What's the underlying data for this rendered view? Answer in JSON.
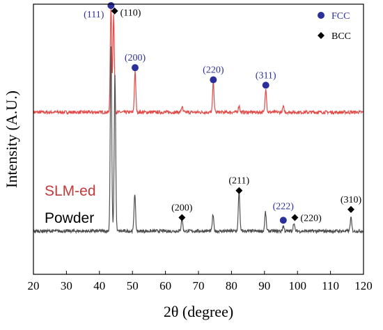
{
  "chart_data": {
    "type": "line",
    "xlabel": "2θ (degree)",
    "ylabel": "Intensity (A.U.)",
    "xlim": [
      20,
      120
    ],
    "x_ticks": [
      "20",
      "30",
      "40",
      "50",
      "60",
      "70",
      "80",
      "90",
      "100",
      "110",
      "120"
    ],
    "legend": {
      "placement": "top-right",
      "entries": [
        {
          "label": "FCC",
          "marker": "circle",
          "color": "#2b2f9a"
        },
        {
          "label": "BCC",
          "marker": "diamond",
          "color": "#000000"
        }
      ]
    },
    "series": [
      {
        "name": "SLM-ed",
        "color": "#e24b48",
        "label_color": "#c43a3a",
        "baseline": 0.6,
        "noise": 0.006,
        "peaks": [
          {
            "x": 43.5,
            "height": 0.39
          },
          {
            "x": 44.3,
            "height": 0.36
          },
          {
            "x": 50.8,
            "height": 0.15
          },
          {
            "x": 65.0,
            "height": 0.02
          },
          {
            "x": 74.5,
            "height": 0.11
          },
          {
            "x": 82.3,
            "height": 0.025
          },
          {
            "x": 90.4,
            "height": 0.09
          },
          {
            "x": 95.7,
            "height": 0.02
          }
        ]
      },
      {
        "name": "Powder",
        "color": "#505050",
        "label_color": "#000000",
        "baseline": 0.16,
        "noise": 0.006,
        "peaks": [
          {
            "x": 43.5,
            "height": 0.68
          },
          {
            "x": 44.7,
            "height": 0.58
          },
          {
            "x": 50.7,
            "height": 0.14
          },
          {
            "x": 65.0,
            "height": 0.05
          },
          {
            "x": 74.4,
            "height": 0.06
          },
          {
            "x": 82.3,
            "height": 0.15
          },
          {
            "x": 90.3,
            "height": 0.07
          },
          {
            "x": 95.7,
            "height": 0.02
          },
          {
            "x": 98.9,
            "height": 0.03
          },
          {
            "x": 116.2,
            "height": 0.05
          }
        ]
      }
    ],
    "annotations": [
      {
        "text": "(111)",
        "x": 43.5,
        "y": 0.995,
        "marker": "circle",
        "color": "#2b2f9a"
      },
      {
        "text": "(110)",
        "x": 44.6,
        "y": 0.975,
        "marker": "diamond",
        "color": "#000000"
      },
      {
        "text": "(200)",
        "x": 50.8,
        "y": 0.765,
        "marker": "circle",
        "color": "#2b2f9a"
      },
      {
        "text": "(220)",
        "x": 74.5,
        "y": 0.72,
        "marker": "circle",
        "color": "#2b2f9a"
      },
      {
        "text": "(311)",
        "x": 90.4,
        "y": 0.7,
        "marker": "circle",
        "color": "#2b2f9a"
      },
      {
        "text": "(200)",
        "x": 65.0,
        "y": 0.21,
        "marker": "diamond",
        "color": "#000000"
      },
      {
        "text": "(211)",
        "x": 82.3,
        "y": 0.31,
        "marker": "diamond",
        "color": "#000000"
      },
      {
        "text": "(222)",
        "x": 95.7,
        "y": 0.2,
        "marker": "circle",
        "color": "#2b2f9a"
      },
      {
        "text": "(220)",
        "x": 99.2,
        "y": 0.21,
        "marker": "diamond",
        "color": "#000000"
      },
      {
        "text": "(310)",
        "x": 116.2,
        "y": 0.24,
        "marker": "diamond",
        "color": "#000000"
      }
    ]
  }
}
